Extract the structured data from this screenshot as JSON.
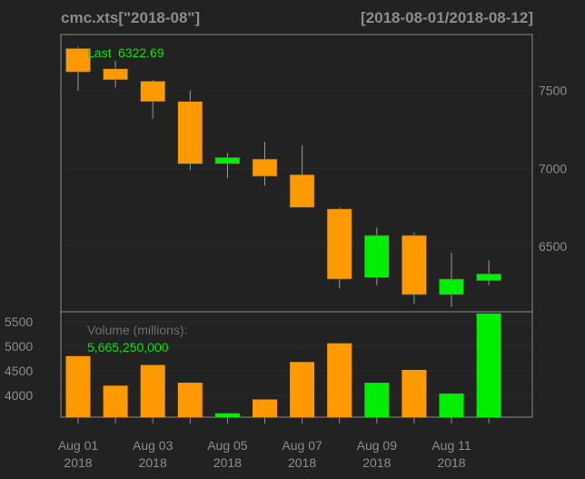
{
  "header": {
    "title": "cmc.xts[\"2018-08\"]",
    "range": "[2018-08-01/2018-08-12]"
  },
  "colors": {
    "up": "#00ee00",
    "down": "#ff9900",
    "background": "#222222",
    "text": "#8c8c8c",
    "legend_value": "#00e600"
  },
  "chart_data": [
    {
      "type": "candlestick",
      "title": "",
      "legend": {
        "label": "Last",
        "value": "6322.69",
        "position": "top-left"
      },
      "x": [
        "2018-08-01",
        "2018-08-02",
        "2018-08-03",
        "2018-08-04",
        "2018-08-05",
        "2018-08-06",
        "2018-08-07",
        "2018-08-08",
        "2018-08-09",
        "2018-08-10",
        "2018-08-11",
        "2018-08-12"
      ],
      "ohlc": [
        {
          "open": 7770,
          "high": 7780,
          "low": 7500,
          "close": 7620
        },
        {
          "open": 7640,
          "high": 7690,
          "low": 7520,
          "close": 7570
        },
        {
          "open": 7560,
          "high": 7570,
          "low": 7320,
          "close": 7430
        },
        {
          "open": 7430,
          "high": 7500,
          "low": 6990,
          "close": 7030
        },
        {
          "open": 7030,
          "high": 7100,
          "low": 6940,
          "close": 7070
        },
        {
          "open": 7060,
          "high": 7170,
          "low": 6890,
          "close": 6950
        },
        {
          "open": 6960,
          "high": 7150,
          "low": 6750,
          "close": 6750
        },
        {
          "open": 6740,
          "high": 6750,
          "low": 6230,
          "close": 6290
        },
        {
          "open": 6300,
          "high": 6620,
          "low": 6250,
          "close": 6570
        },
        {
          "open": 6570,
          "high": 6590,
          "low": 6130,
          "close": 6190
        },
        {
          "open": 6190,
          "high": 6460,
          "low": 6110,
          "close": 6290
        },
        {
          "open": 6280,
          "high": 6410,
          "low": 6250,
          "close": 6322.69
        }
      ],
      "ylim": [
        6080,
        7860
      ],
      "yticks": [
        6500,
        7000,
        7500
      ],
      "grid": true
    },
    {
      "type": "bar",
      "title": "",
      "legend": {
        "label": "Volume (millions):",
        "value": "5,665,250,000",
        "position": "top-left"
      },
      "x": [
        "2018-08-01",
        "2018-08-02",
        "2018-08-03",
        "2018-08-04",
        "2018-08-05",
        "2018-08-06",
        "2018-08-07",
        "2018-08-08",
        "2018-08-09",
        "2018-08-10",
        "2018-08-11",
        "2018-08-12"
      ],
      "values": [
        4800,
        4200,
        4620,
        4260,
        3640,
        3920,
        4680,
        5060,
        4260,
        4520,
        4040,
        5665.25
      ],
      "ylim": [
        3560,
        5700
      ],
      "yticks": [
        4000,
        4500,
        5000,
        5500
      ],
      "grid": true
    }
  ],
  "x_axis": {
    "ticks": [
      {
        "index": 0,
        "label": "Aug 01",
        "year": "2018"
      },
      {
        "index": 2,
        "label": "Aug 03",
        "year": "2018"
      },
      {
        "index": 4,
        "label": "Aug 05",
        "year": "2018"
      },
      {
        "index": 6,
        "label": "Aug 07",
        "year": "2018"
      },
      {
        "index": 8,
        "label": "Aug 09",
        "year": "2018"
      },
      {
        "index": 10,
        "label": "Aug 11",
        "year": "2018"
      }
    ]
  }
}
